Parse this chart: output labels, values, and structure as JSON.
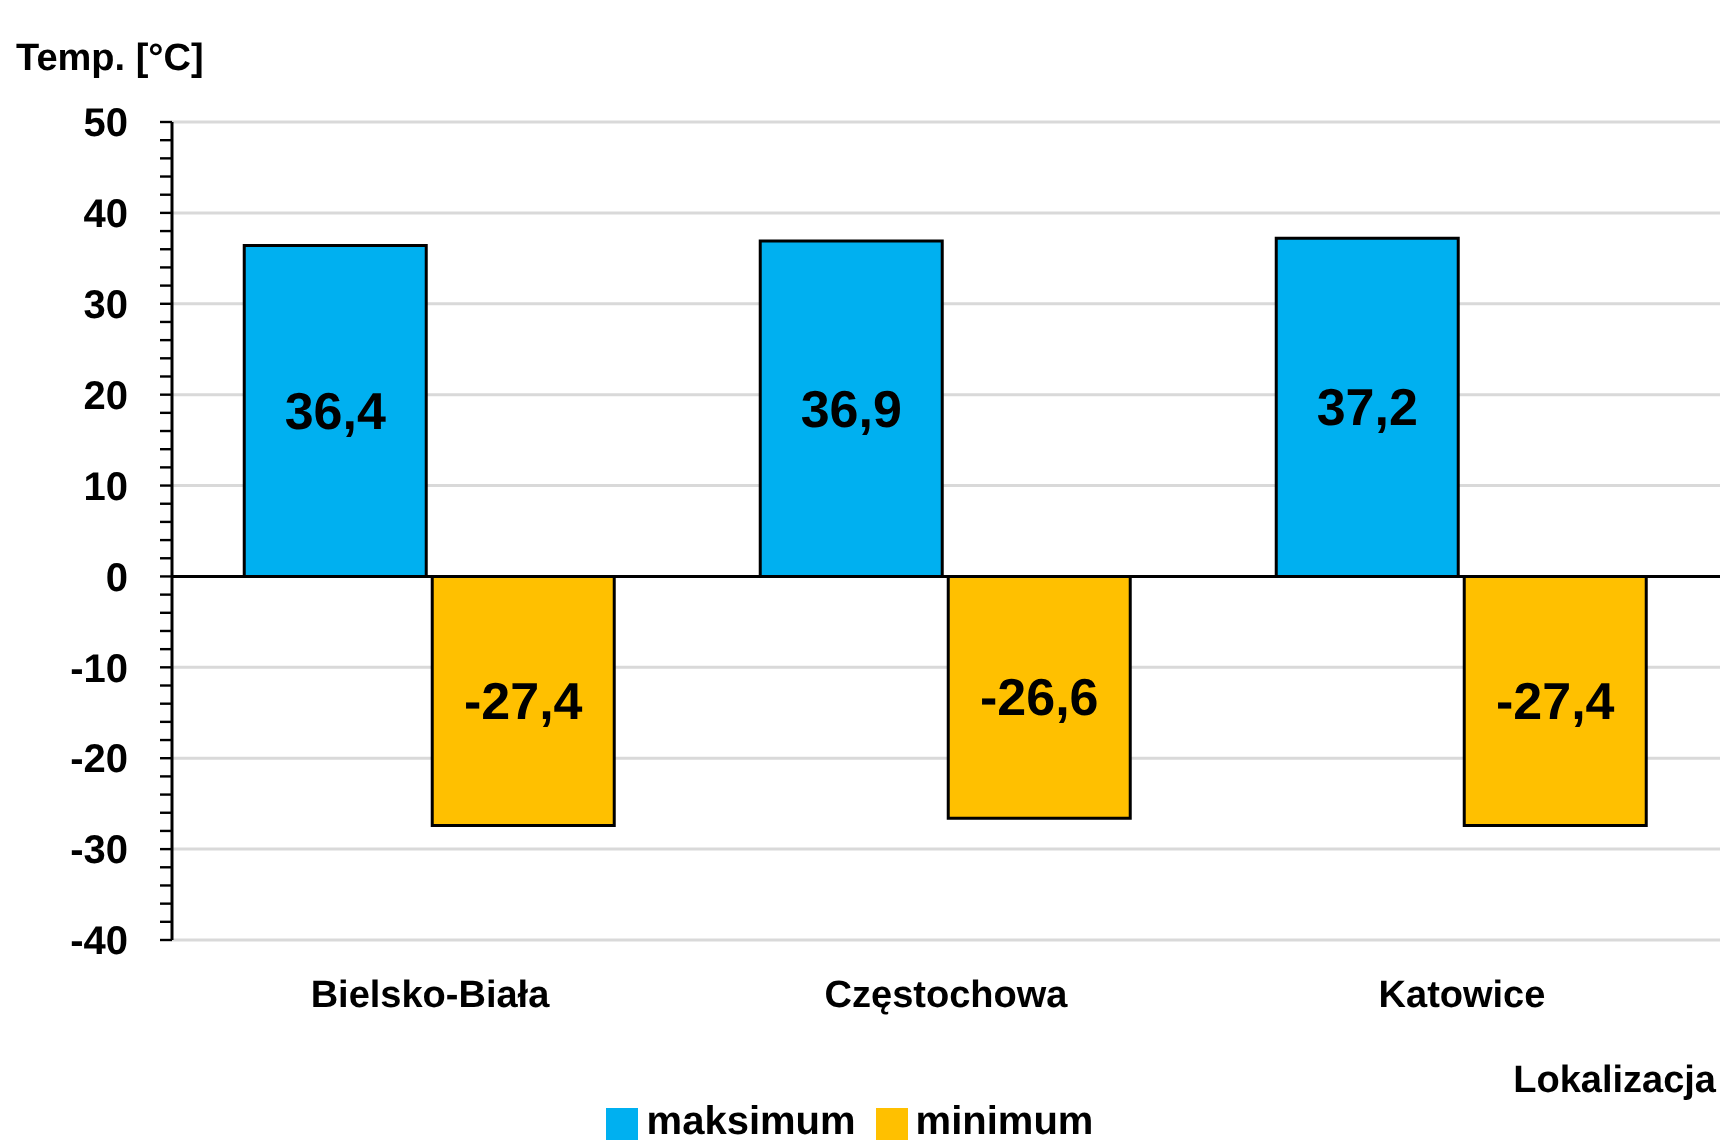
{
  "chart_data": {
    "type": "bar",
    "ylabel": "Temp. [°C]",
    "xlabel": "Lokalizacja",
    "categories": [
      "Bielsko-Biała",
      "Częstochowa",
      "Katowice"
    ],
    "series": [
      {
        "name": "maksimum",
        "color": "#00b0f0",
        "values": [
          36.4,
          36.9,
          37.2
        ],
        "value_labels": [
          "36,4",
          "36,9",
          "37,2"
        ]
      },
      {
        "name": "minimum",
        "color": "#ffc000",
        "values": [
          -27.4,
          -26.6,
          -27.4
        ],
        "value_labels": [
          "-27,4",
          "-26,6",
          "-27,4"
        ]
      }
    ],
    "ylim": [
      -40,
      50
    ],
    "yticks": [
      -40,
      {
        "value": -38,
        "label": null
      },
      {
        "value": -36,
        "label": null
      },
      {
        "value": -34,
        "label": null
      },
      {
        "value": -32,
        "label": null
      },
      -30,
      {
        "value": -28,
        "label": null
      },
      {
        "value": -26,
        "label": null
      },
      {
        "value": -24,
        "label": null
      },
      {
        "value": -22,
        "label": null
      },
      -20,
      {
        "value": -18,
        "label": null
      },
      {
        "value": -16,
        "label": null
      },
      {
        "value": -14,
        "label": null
      },
      {
        "value": -12,
        "label": null
      },
      -10,
      {
        "value": -8,
        "label": null
      },
      {
        "value": -6,
        "label": null
      },
      {
        "value": -4,
        "label": null
      },
      {
        "value": -2,
        "label": null
      },
      0,
      {
        "value": 2,
        "label": null
      },
      {
        "value": 4,
        "label": null
      },
      {
        "value": 6,
        "label": null
      },
      {
        "value": 8,
        "label": null
      },
      10,
      {
        "value": 12,
        "label": null
      },
      {
        "value": 14,
        "label": null
      },
      {
        "value": 16,
        "label": null
      },
      {
        "value": 18,
        "label": null
      },
      20,
      {
        "value": 22,
        "label": null
      },
      {
        "value": 24,
        "label": null
      },
      {
        "value": 26,
        "label": null
      },
      {
        "value": 28,
        "label": null
      },
      30,
      {
        "value": 32,
        "label": null
      },
      {
        "value": 34,
        "label": null
      },
      {
        "value": 36,
        "label": null
      },
      {
        "value": 38,
        "label": null
      },
      40,
      {
        "value": 42,
        "label": null
      },
      {
        "value": 44,
        "label": null
      },
      {
        "value": 46,
        "label": null
      },
      {
        "value": 48,
        "label": null
      },
      50
    ],
    "grid": "y",
    "legend": "bottom"
  }
}
